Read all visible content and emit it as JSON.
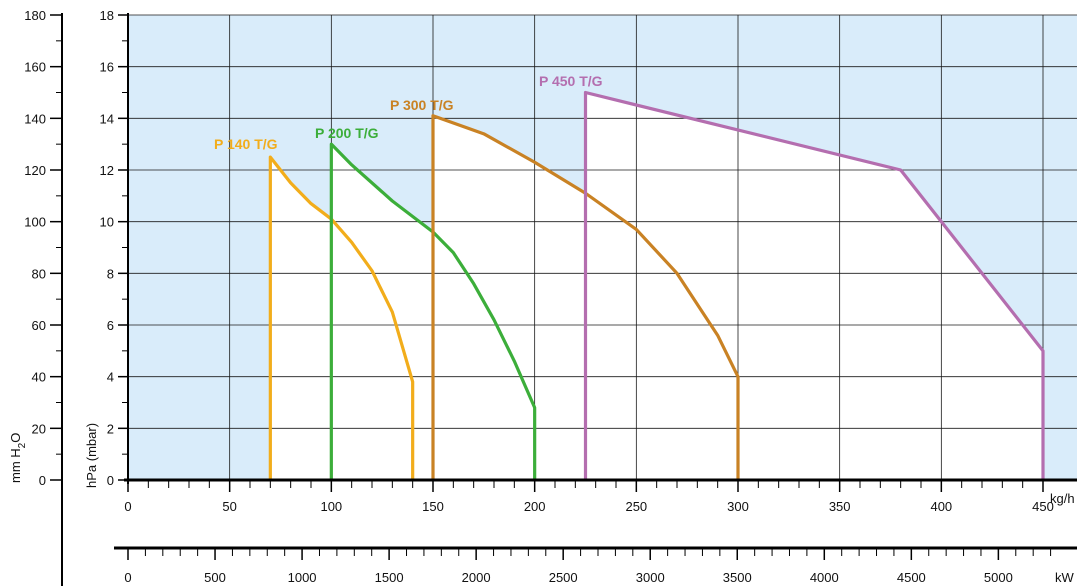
{
  "chart_data": {
    "type": "line",
    "plot_background": "#d9ecfa",
    "envelope_fill": "#ffffff",
    "grid": true,
    "x": {
      "label": "kg/h",
      "range": [
        0,
        450
      ],
      "ticks": [
        "0",
        "50",
        "100",
        "150",
        "200",
        "250",
        "300",
        "350",
        "400",
        "450"
      ]
    },
    "x_secondary": {
      "label": "kW",
      "range": [
        0,
        5400
      ],
      "ticks": [
        "0",
        "500",
        "1000",
        "1500",
        "2000",
        "2500",
        "3000",
        "3500",
        "4000",
        "4500",
        "5000"
      ]
    },
    "y": {
      "label": "hPa (mbar)",
      "range": [
        0,
        18
      ],
      "ticks": [
        "0",
        "2",
        "4",
        "6",
        "8",
        "10",
        "12",
        "14",
        "16",
        "18"
      ]
    },
    "y_secondary": {
      "label_main": "mm H",
      "label_sub": "2",
      "label_end": "O",
      "range": [
        0,
        180
      ],
      "ticks": [
        "0",
        "20",
        "40",
        "60",
        "80",
        "100",
        "120",
        "140",
        "160",
        "180"
      ]
    },
    "series": [
      {
        "name": "P 140 T/G",
        "color": "#f2ad1b",
        "points": [
          [
            70,
            0
          ],
          [
            70,
            12.5
          ],
          [
            80,
            11.5
          ],
          [
            90,
            10.7
          ],
          [
            100,
            10.1
          ],
          [
            110,
            9.2
          ],
          [
            120,
            8.1
          ],
          [
            130,
            6.5
          ],
          [
            140,
            3.8
          ],
          [
            140,
            0
          ]
        ]
      },
      {
        "name": "P 200 T/G",
        "color": "#3cae3a",
        "points": [
          [
            100,
            0
          ],
          [
            100,
            13.0
          ],
          [
            110,
            12.2
          ],
          [
            130,
            10.8
          ],
          [
            150,
            9.6
          ],
          [
            160,
            8.8
          ],
          [
            170,
            7.6
          ],
          [
            180,
            6.2
          ],
          [
            190,
            4.6
          ],
          [
            200,
            2.8
          ],
          [
            200,
            0
          ]
        ]
      },
      {
        "name": "P 300 T/G",
        "color": "#c98224",
        "points": [
          [
            150,
            0
          ],
          [
            150,
            14.1
          ],
          [
            175,
            13.4
          ],
          [
            200,
            12.3
          ],
          [
            225,
            11.1
          ],
          [
            250,
            9.7
          ],
          [
            270,
            8.0
          ],
          [
            290,
            5.6
          ],
          [
            300,
            4.0
          ],
          [
            300,
            0
          ]
        ]
      },
      {
        "name": "P 450 T/G",
        "color": "#b46eaf",
        "points": [
          [
            225,
            0
          ],
          [
            225,
            15.0
          ],
          [
            380,
            12.0
          ],
          [
            450,
            5.0
          ],
          [
            450,
            0
          ]
        ]
      }
    ]
  }
}
